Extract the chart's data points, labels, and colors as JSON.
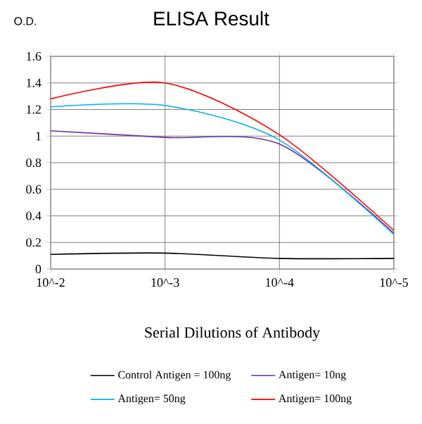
{
  "chart_data": {
    "type": "line",
    "title": "ELISA Result",
    "ylabel": "O.D.",
    "xlabel": "Serial Dilutions of Antibody",
    "categories": [
      "10^-2",
      "10^-3",
      "10^-4",
      "10^-5"
    ],
    "series": [
      {
        "name": "Control Antigen = 100ng",
        "color": "#000000",
        "values": [
          0.11,
          0.12,
          0.08,
          0.08
        ]
      },
      {
        "name": "Antigen= 10ng",
        "color": "#7030a0",
        "values": [
          1.04,
          0.99,
          0.94,
          0.27
        ]
      },
      {
        "name": "Antigen= 50ng",
        "color": "#00b0f0",
        "values": [
          1.22,
          1.23,
          0.97,
          0.26
        ]
      },
      {
        "name": "Antigen= 100ng",
        "color": "#ff0000",
        "values": [
          1.28,
          1.4,
          1.01,
          0.29
        ]
      }
    ],
    "ylim": [
      0,
      1.6
    ],
    "yticks": [
      0,
      0.2,
      0.4,
      0.6,
      0.8,
      1,
      1.2,
      1.4,
      1.6
    ],
    "grid": true,
    "legend": "bottom",
    "marker": "none",
    "line_style": "solid"
  }
}
